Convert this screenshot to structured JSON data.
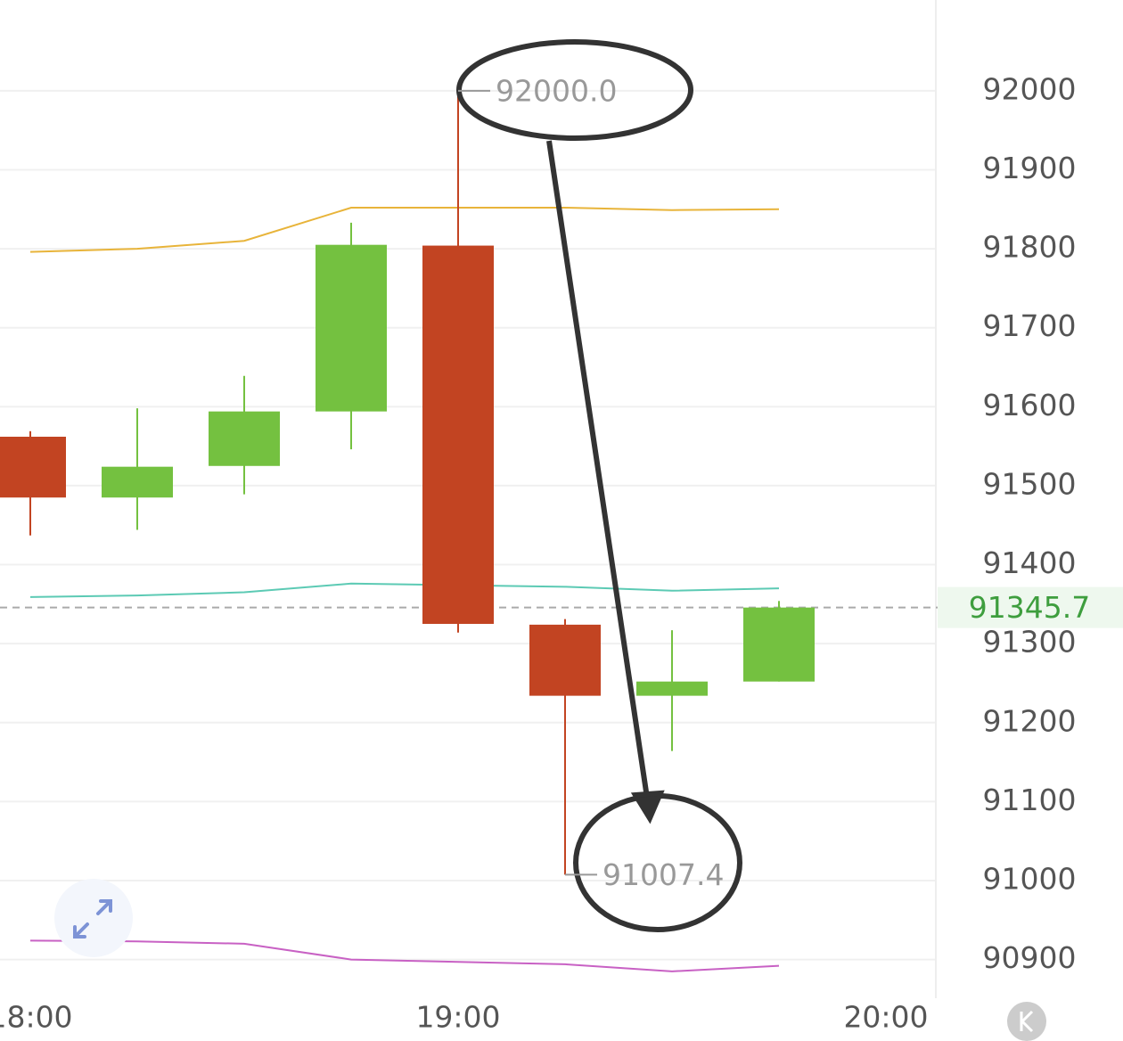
{
  "chart_data": {
    "type": "candlestick",
    "x": [
      "18:00",
      "18:15",
      "18:30",
      "18:45",
      "19:00",
      "19:15",
      "19:30",
      "19:45"
    ],
    "open": [
      91562,
      91485,
      91525,
      91594,
      91804,
      91324,
      91234,
      91252
    ],
    "high": [
      91569,
      91598,
      91639,
      91833,
      92000,
      91331,
      91317,
      91354
    ],
    "low": [
      91437,
      91444,
      91489,
      91546,
      91314,
      91007.4,
      91164,
      91252
    ],
    "close": [
      91485,
      91524,
      91594,
      91805,
      91325,
      91234,
      91252,
      91345.7
    ],
    "up_color": "#74c140",
    "down_color": "#c24422",
    "lines": [
      {
        "color": "#e8b43a",
        "values": [
          91796,
          91800,
          91810,
          91852,
          91852,
          91852,
          91849,
          91850
        ]
      },
      {
        "color": "#5ccab4",
        "values": [
          91359,
          91361,
          91365,
          91376,
          91374,
          91372,
          91367,
          91370
        ]
      },
      {
        "color": "#c861c4",
        "values": [
          90924,
          90923,
          90920,
          90900,
          90897,
          90894,
          90885,
          90892
        ]
      }
    ],
    "annotations": [
      {
        "x": "19:00",
        "value": 92000,
        "label": "92000.0"
      },
      {
        "x": "19:15",
        "value": 91007.4,
        "label": "91007.4"
      }
    ],
    "current_price": 91345.7,
    "xlim": [
      "18:00",
      "20:00"
    ],
    "xticks": [
      "18:00",
      "19:00",
      "20:00"
    ],
    "ylim": [
      90851,
      92115
    ],
    "yticks": [
      90900,
      91000,
      91100,
      91200,
      91300,
      91400,
      91500,
      91600,
      91700,
      91800,
      91900,
      92000
    ],
    "grid": true
  }
}
